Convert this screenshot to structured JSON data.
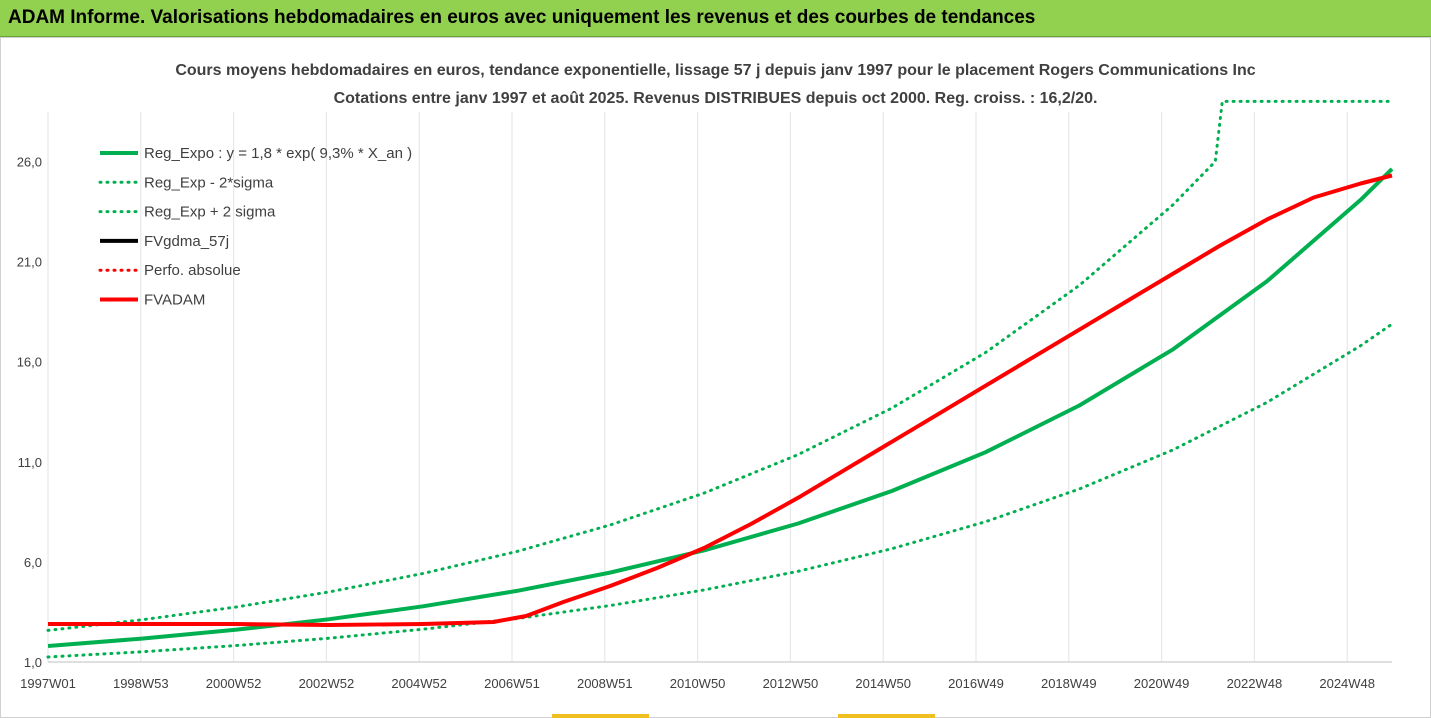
{
  "header": {
    "title": "ADAM Informe. Valorisations hebdomadaires en euros avec uniquement les revenus et des courbes de tendances"
  },
  "chart_data": {
    "type": "line",
    "title": "Cours moyens hebdomadaires en euros, tendance exponentielle, lissage 57 j depuis janv 1997  pour le placement Rogers Communications Inc",
    "subtitle": "Cotations entre janv 1997 et août 2025. Revenus DISTRIBUES depuis oct 2000. Reg. croiss. : 16,2/20.",
    "xlabel": "",
    "ylabel": "",
    "x_tick_labels": [
      "1997W01",
      "1998W53",
      "2000W52",
      "2002W52",
      "2004W52",
      "2006W51",
      "2008W51",
      "2010W50",
      "2012W50",
      "2014W50",
      "2016W49",
      "2018W49",
      "2020W49",
      "2022W48",
      "2024W48"
    ],
    "y_tick_labels": [
      "1,0",
      "6,0",
      "11,0",
      "16,0",
      "21,0",
      "26,0"
    ],
    "ylim": [
      1.0,
      29.5
    ],
    "xlim": [
      1997.0,
      2025.67
    ],
    "grid": "vertical",
    "legend_position": "top-left",
    "series": [
      {
        "name": "Reg_Expo : y = 1,8 * exp( 9,3% *  X_an )",
        "color": "#00b050",
        "style": "solid",
        "x": [
          1997,
          1999,
          2001,
          2003,
          2005,
          2007,
          2009,
          2011,
          2013,
          2015,
          2017,
          2019,
          2021,
          2023,
          2025,
          2025.67
        ],
        "values": [
          1.8,
          2.17,
          2.61,
          3.14,
          3.78,
          4.55,
          5.47,
          6.58,
          7.92,
          9.54,
          11.48,
          13.81,
          16.62,
          20.01,
          24.08,
          25.63
        ]
      },
      {
        "name": "Reg_Exp - 2*sigma",
        "color": "#00b050",
        "style": "dotted",
        "x": [
          1997,
          1999,
          2001,
          2003,
          2005,
          2007,
          2009,
          2011,
          2013,
          2015,
          2017,
          2019,
          2021,
          2023,
          2025,
          2025.67
        ],
        "values": [
          1.25,
          1.51,
          1.82,
          2.19,
          2.64,
          3.17,
          3.82,
          4.6,
          5.53,
          6.66,
          8.01,
          9.64,
          11.6,
          13.96,
          16.8,
          17.88
        ]
      },
      {
        "name": "Reg_Exp + 2 sigma",
        "color": "#00b050",
        "style": "dotted",
        "x": [
          1997,
          1999,
          2001,
          2003,
          2005,
          2007,
          2009,
          2011,
          2013,
          2015,
          2017,
          2019,
          2021,
          2021.9,
          2022.05,
          2025.67
        ],
        "values": [
          2.58,
          3.11,
          3.74,
          4.5,
          5.42,
          6.52,
          7.85,
          9.44,
          11.36,
          13.68,
          16.46,
          19.81,
          23.84,
          26.0,
          29.0,
          29.0
        ]
      },
      {
        "name": "FVgdma_57j",
        "color": "#000000",
        "style": "solid",
        "x": [],
        "values": []
      },
      {
        "name": "Perfo. absolue",
        "color": "#ff0000",
        "style": "dotted",
        "x": [],
        "values": []
      },
      {
        "name": "FVADAM",
        "color": "#ff0000",
        "style": "solid",
        "x": [
          1997,
          1999,
          2001,
          2003,
          2005,
          2006.5,
          2007.2,
          2008,
          2009,
          2010,
          2011,
          2012,
          2013,
          2014,
          2015,
          2016,
          2017,
          2018,
          2019,
          2020,
          2021,
          2022,
          2023,
          2024,
          2025,
          2025.67
        ],
        "values": [
          2.9,
          2.9,
          2.9,
          2.85,
          2.9,
          3.0,
          3.3,
          4.0,
          4.8,
          5.7,
          6.7,
          7.9,
          9.2,
          10.6,
          12.0,
          13.4,
          14.8,
          16.2,
          17.6,
          19.0,
          20.4,
          21.8,
          23.1,
          24.2,
          24.9,
          25.3
        ]
      }
    ]
  }
}
